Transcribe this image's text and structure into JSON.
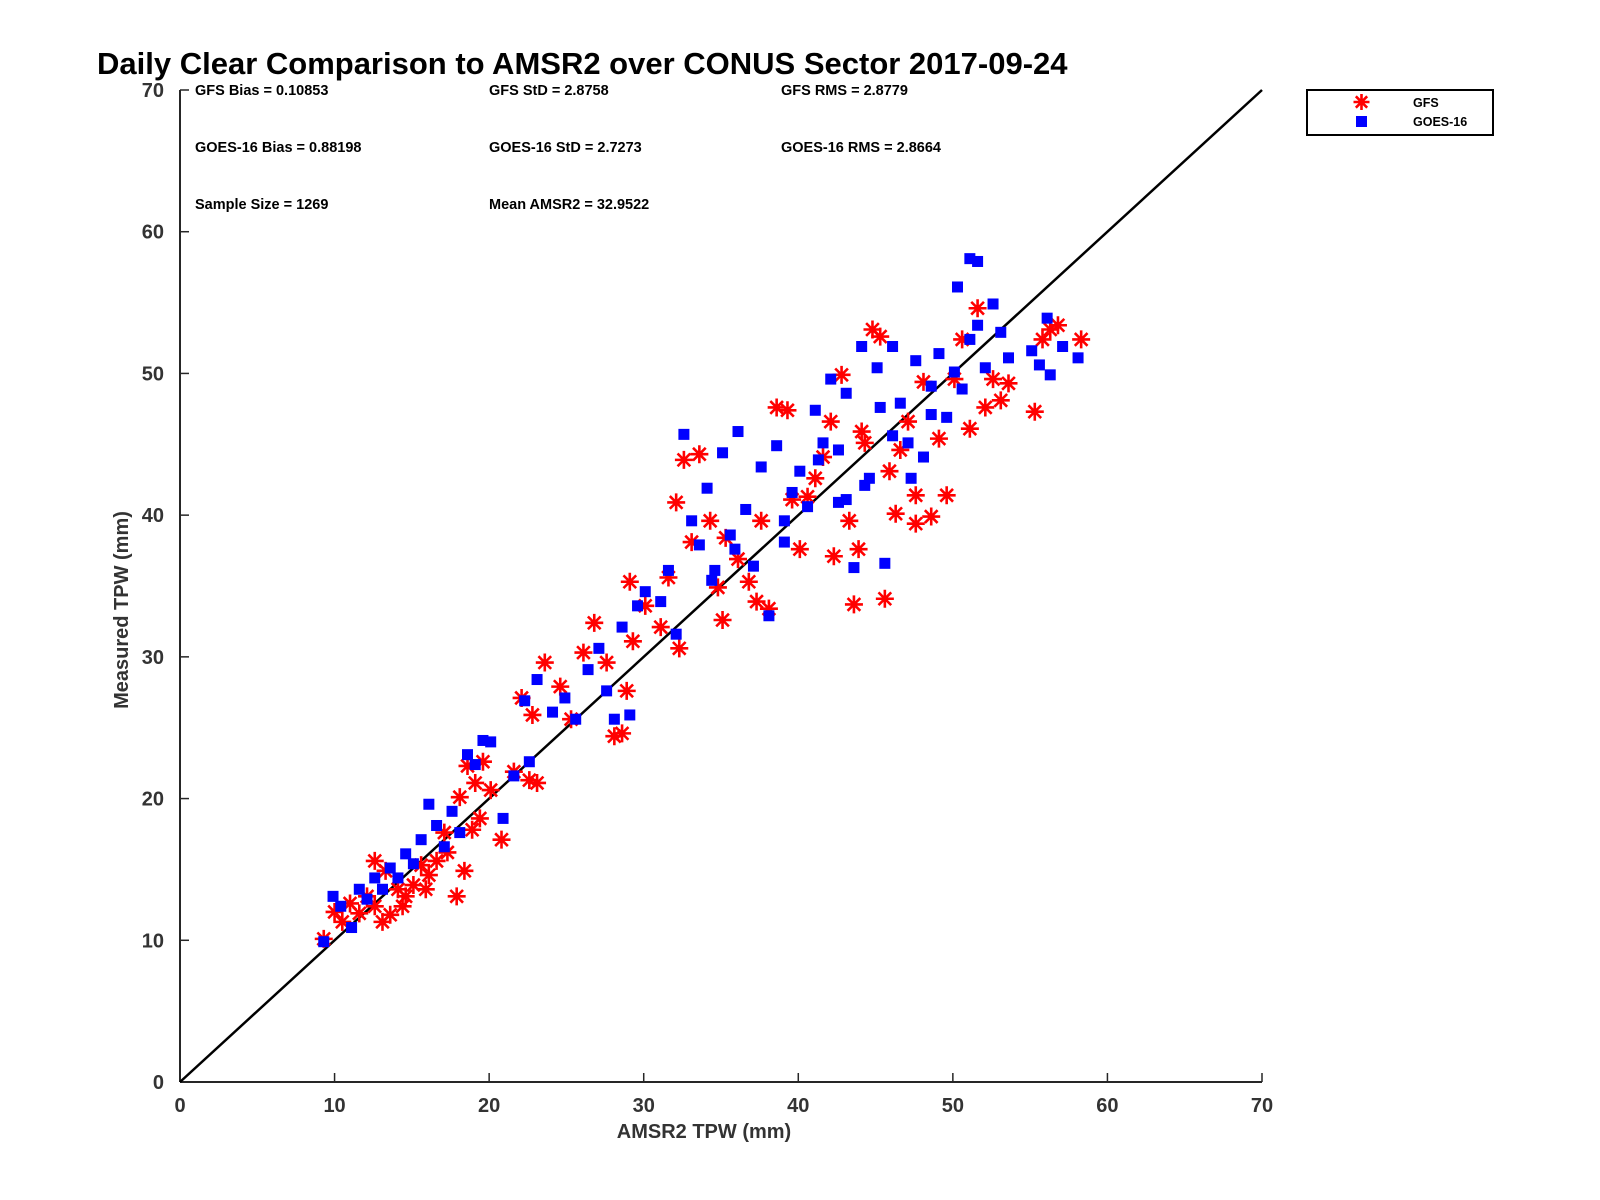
{
  "chart_data": {
    "type": "scatter",
    "title": "Daily Clear Comparison to AMSR2 over CONUS Sector 2017-09-24",
    "xlabel": "AMSR2 TPW (mm)",
    "ylabel": "Measured TPW (mm)",
    "xlim": [
      0,
      70
    ],
    "ylim": [
      0,
      70
    ],
    "xticks": [
      "0",
      "10",
      "20",
      "30",
      "40",
      "50",
      "60",
      "70"
    ],
    "yticks": [
      "0",
      "10",
      "20",
      "30",
      "40",
      "50",
      "60",
      "70"
    ],
    "grid": false,
    "legend_position": "outside-top-right",
    "reference_line": {
      "x": [
        0,
        70
      ],
      "y": [
        0,
        70
      ],
      "color": "#000000"
    },
    "stats": {
      "gfs_bias": "GFS Bias = 0.10853",
      "gfs_std": "GFS StD = 2.8758",
      "gfs_rms": "GFS RMS = 2.8779",
      "goes_bias": "GOES-16 Bias = 0.88198",
      "goes_std": "GOES-16 StD = 2.7273",
      "goes_rms": "GOES-16 RMS = 2.8664",
      "sample_size": "Sample Size = 1269",
      "mean_amsr2": "Mean AMSR2 = 32.9522"
    },
    "series": [
      {
        "name": "GFS",
        "marker": "asterisk",
        "color": "#ff0000",
        "points": [
          [
            9.3,
            10.1
          ],
          [
            10.0,
            12.0
          ],
          [
            10.5,
            11.3
          ],
          [
            11.0,
            12.6
          ],
          [
            11.6,
            11.9
          ],
          [
            12.1,
            13.1
          ],
          [
            12.6,
            12.4
          ],
          [
            13.1,
            11.3
          ],
          [
            13.6,
            11.8
          ],
          [
            14.1,
            13.6
          ],
          [
            14.6,
            13.1
          ],
          [
            15.1,
            13.9
          ],
          [
            15.6,
            15.3
          ],
          [
            16.1,
            14.6
          ],
          [
            16.6,
            15.6
          ],
          [
            17.3,
            16.2
          ],
          [
            17.9,
            13.1
          ],
          [
            18.4,
            14.9
          ],
          [
            18.9,
            17.8
          ],
          [
            19.4,
            18.6
          ],
          [
            12.6,
            15.6
          ],
          [
            13.3,
            14.9
          ],
          [
            14.4,
            12.4
          ],
          [
            15.9,
            13.6
          ],
          [
            17.1,
            17.6
          ],
          [
            18.1,
            20.1
          ],
          [
            18.6,
            22.3
          ],
          [
            19.1,
            21.1
          ],
          [
            19.6,
            22.6
          ],
          [
            20.1,
            20.6
          ],
          [
            20.8,
            17.1
          ],
          [
            21.6,
            21.9
          ],
          [
            22.6,
            21.3
          ],
          [
            23.1,
            21.1
          ],
          [
            22.1,
            27.1
          ],
          [
            22.8,
            25.9
          ],
          [
            23.6,
            29.6
          ],
          [
            24.6,
            27.9
          ],
          [
            25.3,
            25.6
          ],
          [
            26.1,
            30.3
          ],
          [
            26.8,
            32.4
          ],
          [
            27.6,
            29.6
          ],
          [
            28.1,
            24.4
          ],
          [
            28.6,
            24.6
          ],
          [
            28.9,
            27.6
          ],
          [
            29.3,
            31.1
          ],
          [
            29.1,
            35.3
          ],
          [
            30.1,
            33.6
          ],
          [
            31.1,
            32.1
          ],
          [
            32.3,
            30.6
          ],
          [
            31.6,
            35.6
          ],
          [
            32.1,
            40.9
          ],
          [
            32.6,
            43.9
          ],
          [
            33.1,
            38.1
          ],
          [
            33.6,
            44.3
          ],
          [
            34.3,
            39.6
          ],
          [
            34.8,
            34.9
          ],
          [
            35.1,
            32.6
          ],
          [
            35.3,
            38.4
          ],
          [
            36.1,
            36.9
          ],
          [
            36.8,
            35.3
          ],
          [
            37.3,
            33.9
          ],
          [
            38.1,
            33.4
          ],
          [
            38.6,
            47.6
          ],
          [
            39.3,
            47.4
          ],
          [
            40.1,
            37.6
          ],
          [
            40.6,
            41.3
          ],
          [
            41.1,
            42.6
          ],
          [
            41.6,
            44.1
          ],
          [
            42.1,
            46.6
          ],
          [
            42.3,
            37.1
          ],
          [
            42.8,
            49.9
          ],
          [
            43.3,
            39.6
          ],
          [
            43.6,
            33.7
          ],
          [
            43.9,
            37.6
          ],
          [
            44.3,
            45.1
          ],
          [
            44.8,
            53.1
          ],
          [
            45.3,
            52.6
          ],
          [
            45.6,
            34.1
          ],
          [
            45.9,
            43.1
          ],
          [
            46.3,
            40.1
          ],
          [
            46.6,
            44.6
          ],
          [
            47.1,
            46.6
          ],
          [
            47.6,
            39.4
          ],
          [
            48.1,
            49.4
          ],
          [
            48.6,
            39.9
          ],
          [
            49.1,
            45.4
          ],
          [
            49.6,
            41.4
          ],
          [
            50.1,
            49.6
          ],
          [
            50.6,
            52.4
          ],
          [
            51.1,
            46.1
          ],
          [
            51.6,
            54.6
          ],
          [
            52.1,
            47.6
          ],
          [
            52.6,
            49.6
          ],
          [
            53.1,
            48.1
          ],
          [
            53.6,
            49.3
          ],
          [
            55.3,
            47.3
          ],
          [
            55.8,
            52.4
          ],
          [
            56.3,
            53.1
          ],
          [
            56.8,
            53.4
          ],
          [
            58.3,
            52.4
          ],
          [
            47.6,
            41.4
          ],
          [
            44.1,
            45.9
          ],
          [
            39.6,
            41.1
          ],
          [
            37.6,
            39.6
          ]
        ]
      },
      {
        "name": "GOES-16",
        "marker": "square",
        "color": "#0000ff",
        "points": [
          [
            9.3,
            9.9
          ],
          [
            9.9,
            13.1
          ],
          [
            10.4,
            12.4
          ],
          [
            11.1,
            10.9
          ],
          [
            11.6,
            13.6
          ],
          [
            12.1,
            12.9
          ],
          [
            12.6,
            14.4
          ],
          [
            13.1,
            13.6
          ],
          [
            13.6,
            15.1
          ],
          [
            14.1,
            14.4
          ],
          [
            14.6,
            16.1
          ],
          [
            15.1,
            15.4
          ],
          [
            15.6,
            17.1
          ],
          [
            16.1,
            19.6
          ],
          [
            16.6,
            18.1
          ],
          [
            17.1,
            16.6
          ],
          [
            17.6,
            19.1
          ],
          [
            18.1,
            17.6
          ],
          [
            18.6,
            23.1
          ],
          [
            19.1,
            22.4
          ],
          [
            19.6,
            24.1
          ],
          [
            20.1,
            24.0
          ],
          [
            20.9,
            18.6
          ],
          [
            21.6,
            21.6
          ],
          [
            22.6,
            22.6
          ],
          [
            22.3,
            26.9
          ],
          [
            23.1,
            28.4
          ],
          [
            24.1,
            26.1
          ],
          [
            24.9,
            27.1
          ],
          [
            25.6,
            25.6
          ],
          [
            26.4,
            29.1
          ],
          [
            27.1,
            30.6
          ],
          [
            27.6,
            27.6
          ],
          [
            28.1,
            25.6
          ],
          [
            28.6,
            32.1
          ],
          [
            29.1,
            25.9
          ],
          [
            29.6,
            33.6
          ],
          [
            30.1,
            34.6
          ],
          [
            31.1,
            33.9
          ],
          [
            31.6,
            36.1
          ],
          [
            32.1,
            31.6
          ],
          [
            32.6,
            45.7
          ],
          [
            33.1,
            39.6
          ],
          [
            33.6,
            37.9
          ],
          [
            34.1,
            41.9
          ],
          [
            34.6,
            36.1
          ],
          [
            35.1,
            44.4
          ],
          [
            35.6,
            38.6
          ],
          [
            36.1,
            45.9
          ],
          [
            36.6,
            40.4
          ],
          [
            37.1,
            36.4
          ],
          [
            37.6,
            43.4
          ],
          [
            38.1,
            32.9
          ],
          [
            38.6,
            44.9
          ],
          [
            39.1,
            39.6
          ],
          [
            39.6,
            41.6
          ],
          [
            40.1,
            43.1
          ],
          [
            40.6,
            40.6
          ],
          [
            41.1,
            47.4
          ],
          [
            41.6,
            45.1
          ],
          [
            42.1,
            49.6
          ],
          [
            42.6,
            44.6
          ],
          [
            43.1,
            48.6
          ],
          [
            43.6,
            36.3
          ],
          [
            44.1,
            51.9
          ],
          [
            44.6,
            42.6
          ],
          [
            45.1,
            50.4
          ],
          [
            45.6,
            36.6
          ],
          [
            46.1,
            51.9
          ],
          [
            46.6,
            47.9
          ],
          [
            47.1,
            45.1
          ],
          [
            47.6,
            50.9
          ],
          [
            48.1,
            44.1
          ],
          [
            48.6,
            49.1
          ],
          [
            49.1,
            51.4
          ],
          [
            49.6,
            46.9
          ],
          [
            50.1,
            50.1
          ],
          [
            50.6,
            48.9
          ],
          [
            51.1,
            52.4
          ],
          [
            51.1,
            58.1
          ],
          [
            51.6,
            57.9
          ],
          [
            51.6,
            53.4
          ],
          [
            52.1,
            50.4
          ],
          [
            52.6,
            54.9
          ],
          [
            53.1,
            52.9
          ],
          [
            53.6,
            51.1
          ],
          [
            55.1,
            51.6
          ],
          [
            55.6,
            50.6
          ],
          [
            56.1,
            53.9
          ],
          [
            56.3,
            49.9
          ],
          [
            57.1,
            51.9
          ],
          [
            58.1,
            51.1
          ],
          [
            50.3,
            56.1
          ],
          [
            45.3,
            47.6
          ],
          [
            47.3,
            42.6
          ],
          [
            43.1,
            41.1
          ],
          [
            39.1,
            38.1
          ],
          [
            41.3,
            43.9
          ],
          [
            46.1,
            45.6
          ],
          [
            44.3,
            42.1
          ],
          [
            42.6,
            40.9
          ],
          [
            48.6,
            47.1
          ],
          [
            35.9,
            37.6
          ],
          [
            34.4,
            35.4
          ]
        ]
      }
    ]
  }
}
